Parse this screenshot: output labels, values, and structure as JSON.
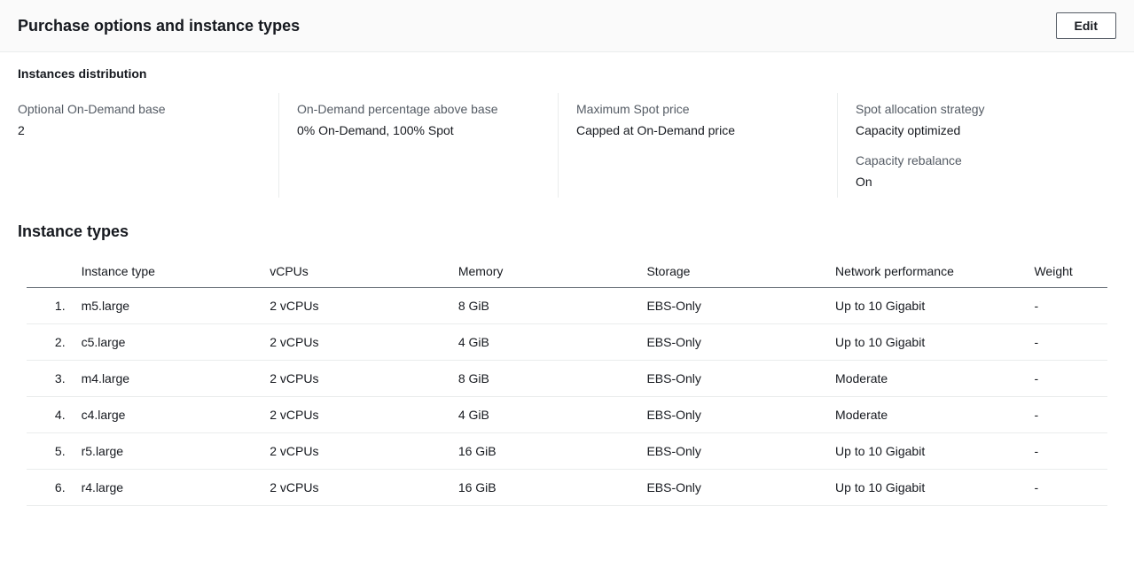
{
  "header": {
    "title": "Purchase options and instance types",
    "edit_label": "Edit"
  },
  "distribution": {
    "section_label": "Instances distribution",
    "columns": [
      [
        {
          "label": "Optional On-Demand base",
          "value": "2"
        }
      ],
      [
        {
          "label": "On-Demand percentage above base",
          "value": "0% On-Demand, 100% Spot"
        }
      ],
      [
        {
          "label": "Maximum Spot price",
          "value": "Capped at On-Demand price"
        }
      ],
      [
        {
          "label": "Spot allocation strategy",
          "value": "Capacity optimized"
        },
        {
          "label": "Capacity rebalance",
          "value": "On"
        }
      ]
    ]
  },
  "instance_types": {
    "heading": "Instance types",
    "columns": [
      "",
      "Instance type",
      "vCPUs",
      "Memory",
      "Storage",
      "Network performance",
      "Weight"
    ],
    "rows": [
      [
        "1.",
        "m5.large",
        "2 vCPUs",
        "8 GiB",
        "EBS-Only",
        "Up to 10 Gigabit",
        "-"
      ],
      [
        "2.",
        "c5.large",
        "2 vCPUs",
        "4 GiB",
        "EBS-Only",
        "Up to 10 Gigabit",
        "-"
      ],
      [
        "3.",
        "m4.large",
        "2 vCPUs",
        "8 GiB",
        "EBS-Only",
        "Moderate",
        "-"
      ],
      [
        "4.",
        "c4.large",
        "2 vCPUs",
        "4 GiB",
        "EBS-Only",
        "Moderate",
        "-"
      ],
      [
        "5.",
        "r5.large",
        "2 vCPUs",
        "16 GiB",
        "EBS-Only",
        "Up to 10 Gigabit",
        "-"
      ],
      [
        "6.",
        "r4.large",
        "2 vCPUs",
        "16 GiB",
        "EBS-Only",
        "Up to 10 Gigabit",
        "-"
      ]
    ]
  }
}
